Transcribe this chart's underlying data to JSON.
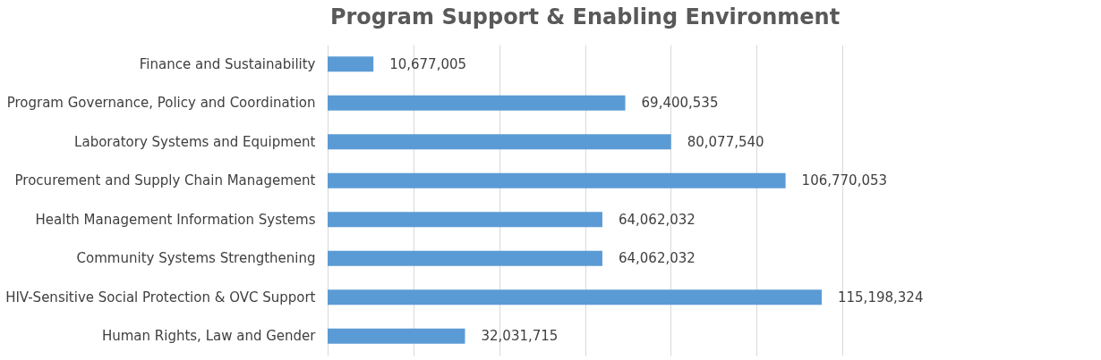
{
  "chart_data": {
    "type": "bar",
    "orientation": "horizontal",
    "title": "Program Support & Enabling Environment",
    "categories": [
      "Finance and Sustainability",
      "Program Governance, Policy and Coordination",
      "Laboratory Systems and Equipment",
      "Procurement and Supply Chain Management",
      "Health Management Information Systems",
      "Community Systems Strengthening",
      "HIV-Sensitive Social Protection & OVC Support",
      "Human Rights, Law and Gender"
    ],
    "values": [
      10677005,
      69400535,
      80077540,
      106770053,
      64062032,
      64062032,
      115198324,
      32031715
    ],
    "value_labels": [
      "10,677,005",
      "69,400,535",
      "80,077,540",
      "106,770,053",
      "64,062,032",
      "64,062,032",
      "115,198,324",
      "32,031,715"
    ],
    "color": "#5b9bd5",
    "grid": "x"
  }
}
